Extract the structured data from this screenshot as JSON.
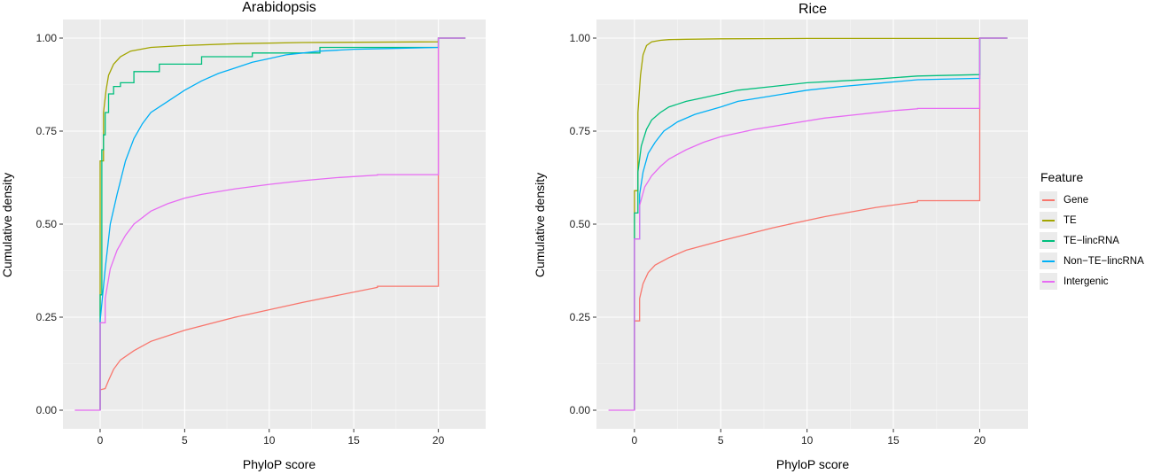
{
  "colors": {
    "gene": "#F8766D",
    "te": "#A3A500",
    "te_lincrna": "#00BF7D",
    "non_te_lincrna": "#00B0F6",
    "intergenic": "#E76BF3",
    "panel_background": "#ebebeb",
    "grid": "#ffffff"
  },
  "legend": {
    "title": "Feature",
    "items": [
      {
        "label": "Gene",
        "color": "#F8766D"
      },
      {
        "label": "TE",
        "color": "#A3A500"
      },
      {
        "label": "TE−lincRNA",
        "color": "#00BF7D"
      },
      {
        "label": "Non−TE−lincRNA",
        "color": "#00B0F6"
      },
      {
        "label": "Intergenic",
        "color": "#E76BF3"
      }
    ]
  },
  "chart_data": [
    {
      "type": "line",
      "title": "Arabidopsis",
      "xlabel": "PhyloP score",
      "ylabel": "Cumulative density",
      "xlim": [
        -2.2,
        22.8
      ],
      "ylim": [
        -0.05,
        1.05
      ],
      "xticks": [
        0,
        5,
        10,
        15,
        20
      ],
      "yticks": [
        0.0,
        0.25,
        0.5,
        0.75,
        1.0
      ],
      "ytick_labels": [
        "0.00",
        "0.25",
        "0.50",
        "0.75",
        "1.00"
      ],
      "grid": true,
      "series": [
        {
          "name": "Gene",
          "color": "#F8766D",
          "x": [
            0,
            0,
            0.3,
            0.5,
            0.8,
            1.2,
            2,
            3,
            5,
            8,
            12,
            16.4,
            16.4,
            20,
            20,
            21.6
          ],
          "y": [
            0,
            0.055,
            0.058,
            0.08,
            0.11,
            0.135,
            0.16,
            0.185,
            0.215,
            0.25,
            0.29,
            0.33,
            0.333,
            0.333,
            1.0,
            1.0
          ]
        },
        {
          "name": "TE",
          "color": "#A3A500",
          "x": [
            0,
            0,
            0.2,
            0.2,
            0.35,
            0.5,
            0.8,
            1.2,
            1.8,
            3,
            5,
            8,
            12,
            20,
            20,
            21.6
          ],
          "y": [
            0,
            0.67,
            0.67,
            0.8,
            0.86,
            0.9,
            0.93,
            0.95,
            0.965,
            0.975,
            0.98,
            0.985,
            0.988,
            0.99,
            1.0,
            1.0
          ]
        },
        {
          "name": "TE−lincRNA",
          "color": "#00BF7D",
          "x": [
            0,
            0,
            0.1,
            0.1,
            0.2,
            0.2,
            0.3,
            0.3,
            0.5,
            0.5,
            0.8,
            0.8,
            1.2,
            1.2,
            2.0,
            2.0,
            3.5,
            3.5,
            6,
            6,
            9,
            9,
            13,
            13,
            20,
            20,
            21.6
          ],
          "y": [
            0,
            0.31,
            0.31,
            0.7,
            0.7,
            0.74,
            0.74,
            0.8,
            0.8,
            0.85,
            0.85,
            0.87,
            0.87,
            0.88,
            0.88,
            0.91,
            0.91,
            0.93,
            0.93,
            0.95,
            0.95,
            0.96,
            0.96,
            0.975,
            0.975,
            1.0,
            1.0
          ]
        },
        {
          "name": "Non−TE−lincRNA",
          "color": "#00B0F6",
          "x": [
            0,
            0,
            0.3,
            0.6,
            1.0,
            1.5,
            2.0,
            2.5,
            3.0,
            4.0,
            5.0,
            6.0,
            7.0,
            8.0,
            9.0,
            10.0,
            11.0,
            12.0,
            13.0,
            15.0,
            17.0,
            20,
            20,
            21.6
          ],
          "y": [
            0,
            0.24,
            0.38,
            0.5,
            0.58,
            0.67,
            0.73,
            0.77,
            0.8,
            0.83,
            0.86,
            0.885,
            0.905,
            0.92,
            0.935,
            0.945,
            0.955,
            0.96,
            0.965,
            0.97,
            0.972,
            0.975,
            1.0,
            1.0
          ]
        },
        {
          "name": "Intergenic",
          "color": "#E76BF3",
          "x": [
            -1.5,
            0,
            0,
            0.3,
            0.3,
            0.6,
            1.0,
            1.5,
            2.0,
            3.0,
            4.0,
            5.0,
            6.0,
            8.0,
            10.0,
            12.0,
            14.0,
            16.4,
            16.4,
            20,
            20,
            21.6
          ],
          "y": [
            0,
            0,
            0.235,
            0.235,
            0.3,
            0.38,
            0.43,
            0.47,
            0.5,
            0.535,
            0.555,
            0.57,
            0.58,
            0.595,
            0.607,
            0.617,
            0.625,
            0.632,
            0.633,
            0.633,
            1.0,
            1.0
          ]
        }
      ]
    },
    {
      "type": "line",
      "title": "Rice",
      "xlabel": "PhyloP score",
      "ylabel": "Cumulative density",
      "xlim": [
        -2.2,
        22.8
      ],
      "ylim": [
        -0.05,
        1.05
      ],
      "xticks": [
        0,
        5,
        10,
        15,
        20
      ],
      "yticks": [
        0.0,
        0.25,
        0.5,
        0.75,
        1.0
      ],
      "ytick_labels": [
        "0.00",
        "0.25",
        "0.50",
        "0.75",
        "1.00"
      ],
      "grid": true,
      "series": [
        {
          "name": "Gene",
          "color": "#F8766D",
          "x": [
            0,
            0,
            0.3,
            0.3,
            0.5,
            0.8,
            1.2,
            2.0,
            3.0,
            5.0,
            8.0,
            11.0,
            14.0,
            16.4,
            16.4,
            20,
            20,
            21.6
          ],
          "y": [
            0,
            0.24,
            0.24,
            0.3,
            0.34,
            0.37,
            0.39,
            0.41,
            0.43,
            0.455,
            0.49,
            0.52,
            0.545,
            0.56,
            0.563,
            0.563,
            1.0,
            1.0
          ]
        },
        {
          "name": "TE",
          "color": "#A3A500",
          "x": [
            0,
            0,
            0.2,
            0.2,
            0.35,
            0.5,
            0.7,
            1.0,
            1.5,
            2.0,
            3.0,
            5.0,
            10.0,
            20,
            20,
            21.6
          ],
          "y": [
            0,
            0.59,
            0.59,
            0.8,
            0.9,
            0.955,
            0.98,
            0.99,
            0.994,
            0.996,
            0.997,
            0.998,
            0.999,
            0.999,
            1.0,
            1.0
          ]
        },
        {
          "name": "TE−lincRNA",
          "color": "#00BF7D",
          "x": [
            0,
            0,
            0.2,
            0.2,
            0.4,
            0.7,
            1.0,
            1.5,
            2.0,
            3.0,
            4.0,
            5.0,
            6.0,
            8.0,
            10.0,
            12.0,
            14.0,
            16.4,
            20,
            20,
            21.6
          ],
          "y": [
            0,
            0.53,
            0.53,
            0.64,
            0.71,
            0.755,
            0.78,
            0.8,
            0.815,
            0.83,
            0.84,
            0.85,
            0.86,
            0.87,
            0.88,
            0.885,
            0.89,
            0.898,
            0.902,
            1.0,
            1.0
          ]
        },
        {
          "name": "Non−TE−lincRNA",
          "color": "#00B0F6",
          "x": [
            0,
            0,
            0.3,
            0.3,
            0.5,
            0.8,
            1.2,
            1.7,
            2.5,
            3.5,
            5.0,
            6.0,
            8.0,
            10.0,
            12.0,
            14.0,
            16.4,
            20,
            20,
            21.6
          ],
          "y": [
            0,
            0.46,
            0.46,
            0.58,
            0.64,
            0.69,
            0.72,
            0.75,
            0.775,
            0.795,
            0.815,
            0.83,
            0.845,
            0.86,
            0.87,
            0.878,
            0.888,
            0.892,
            1.0,
            1.0
          ]
        },
        {
          "name": "Intergenic",
          "color": "#E76BF3",
          "x": [
            -1.5,
            0,
            0,
            0.3,
            0.3,
            0.6,
            1.0,
            1.5,
            2.0,
            3.0,
            4.0,
            5.0,
            7.0,
            9.0,
            11.0,
            13.0,
            15.0,
            16.4,
            16.4,
            20,
            20,
            21.6
          ],
          "y": [
            0,
            0,
            0.46,
            0.46,
            0.55,
            0.6,
            0.63,
            0.655,
            0.675,
            0.7,
            0.72,
            0.735,
            0.755,
            0.77,
            0.785,
            0.795,
            0.805,
            0.81,
            0.811,
            0.811,
            1.0,
            1.0
          ]
        }
      ]
    }
  ]
}
